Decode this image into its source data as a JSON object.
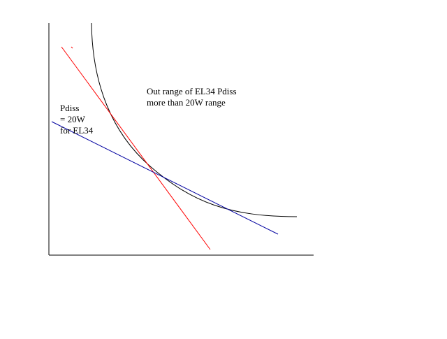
{
  "annotations": {
    "out_range": [
      "Out range of EL34 Pdiss",
      "more than 20W range"
    ],
    "pdiss": [
      "Pdiss",
      "= 20W",
      "for EL34"
    ]
  },
  "colors": {
    "background": "#ffffff",
    "axes": "#000000",
    "pdiss_curve": "#000000",
    "load_line_red": "#ff0000",
    "load_line_blue": "#0000a0"
  }
}
